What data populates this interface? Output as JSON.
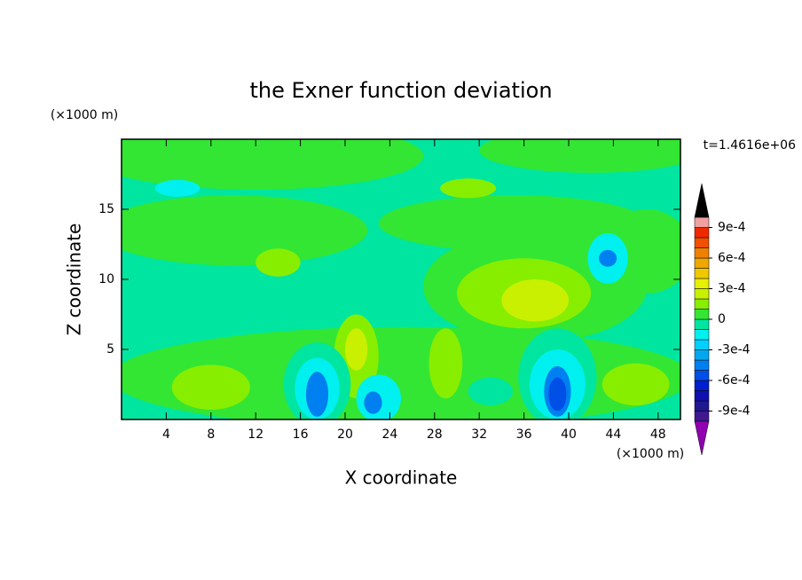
{
  "chart_data": {
    "type": "contour",
    "title": "the Exner function deviation",
    "xlabel": "X coordinate",
    "ylabel": "Z coordinate",
    "x_unit": "(×1000 m)",
    "y_unit": "(×1000 m)",
    "time_label": "t=1.4616e+06",
    "xlim": [
      0,
      50
    ],
    "ylim": [
      0,
      20
    ],
    "xticks": [
      4,
      8,
      12,
      16,
      20,
      24,
      28,
      32,
      36,
      40,
      44,
      48
    ],
    "yticks": [
      5,
      10,
      15
    ],
    "colorbar": {
      "levels": [
        -0.001,
        -0.0009,
        -0.0008,
        -0.0007,
        -0.0006,
        -0.0005,
        -0.0004,
        -0.0003,
        -0.0002,
        -0.0001,
        0,
        0.0001,
        0.0002,
        0.0003,
        0.0004,
        0.0005,
        0.0006,
        0.0007,
        0.0008,
        0.0009,
        0.001
      ],
      "colors": [
        "#9000b0",
        "#401890",
        "#201890",
        "#1010b0",
        "#0020d0",
        "#0050e8",
        "#0080f0",
        "#00a8f0",
        "#00d0ff",
        "#00f0f0",
        "#00e6a0",
        "#33e633",
        "#88ee00",
        "#c8f000",
        "#e6f000",
        "#f0c800",
        "#f0a800",
        "#f08000",
        "#f05000",
        "#f02800",
        "#f0a0a0"
      ],
      "ticks": [
        {
          "value": 0.0009,
          "label": "9e-4"
        },
        {
          "value": 0.0006,
          "label": "6e-4"
        },
        {
          "value": 0.0003,
          "label": "3e-4"
        },
        0,
        {
          "value": -0.0003,
          "label": "-3e-4"
        },
        {
          "value": -0.0006,
          "label": "-6e-4"
        },
        {
          "value": -0.0009,
          "label": "-9e-4"
        }
      ]
    },
    "background": -5e-05,
    "blobs": [
      {
        "x": 12,
        "z": 18.8,
        "rx": 15,
        "rz": 2.4,
        "value": 5e-05
      },
      {
        "x": 42,
        "z": 19.2,
        "rx": 10,
        "rz": 1.6,
        "value": 5e-05
      },
      {
        "x": 10,
        "z": 13.5,
        "rx": 12,
        "rz": 2.5,
        "value": 5e-05
      },
      {
        "x": 35,
        "z": 14,
        "rx": 12,
        "rz": 2,
        "value": 5e-05
      },
      {
        "x": 47,
        "z": 12,
        "rx": 4,
        "rz": 3,
        "value": 5e-05
      },
      {
        "x": 37,
        "z": 9.5,
        "rx": 10,
        "rz": 4,
        "value": 5e-05
      },
      {
        "x": 36,
        "z": 9,
        "rx": 6,
        "rz": 2.5,
        "value": 0.00015
      },
      {
        "x": 37,
        "z": 8.5,
        "rx": 3,
        "rz": 1.5,
        "value": 0.00025
      },
      {
        "x": 31,
        "z": 16.5,
        "rx": 2.5,
        "rz": 0.7,
        "value": 0.00015
      },
      {
        "x": 14,
        "z": 11.2,
        "rx": 2,
        "rz": 1,
        "value": 0.00015
      },
      {
        "x": 43.5,
        "z": 11.5,
        "rx": 1.8,
        "rz": 1.8,
        "value": -0.00015
      },
      {
        "x": 43.5,
        "z": 11.5,
        "rx": 0.8,
        "rz": 0.6,
        "value": -0.00045
      },
      {
        "x": 5,
        "z": 16.5,
        "rx": 2,
        "rz": 0.6,
        "value": -0.00015
      },
      {
        "x": 25,
        "z": 3,
        "rx": 26,
        "rz": 3.6,
        "value": 5e-05
      },
      {
        "x": 8,
        "z": 2.3,
        "rx": 3.5,
        "rz": 1.6,
        "value": 0.00015
      },
      {
        "x": 21,
        "z": 4.5,
        "rx": 2,
        "rz": 3,
        "value": 0.00015
      },
      {
        "x": 21,
        "z": 5,
        "rx": 1,
        "rz": 1.5,
        "value": 0.00025
      },
      {
        "x": 46,
        "z": 2.5,
        "rx": 3,
        "rz": 1.5,
        "value": 0.00015
      },
      {
        "x": 29,
        "z": 4,
        "rx": 1.5,
        "rz": 2.5,
        "value": 0.00015
      },
      {
        "x": 33,
        "z": 2,
        "rx": 2,
        "rz": 1,
        "value": -5e-05
      },
      {
        "x": 17.5,
        "z": 2.5,
        "rx": 3,
        "rz": 3,
        "value": -5e-05
      },
      {
        "x": 17.5,
        "z": 2.2,
        "rx": 2,
        "rz": 2.2,
        "value": -0.00015
      },
      {
        "x": 17.5,
        "z": 1.8,
        "rx": 1,
        "rz": 1.6,
        "value": -0.00045
      },
      {
        "x": 23,
        "z": 1.5,
        "rx": 2,
        "rz": 1.7,
        "value": -0.00015
      },
      {
        "x": 22.5,
        "z": 1.2,
        "rx": 0.8,
        "rz": 0.8,
        "value": -0.00045
      },
      {
        "x": 39,
        "z": 3,
        "rx": 3.5,
        "rz": 3.5,
        "value": -5e-05
      },
      {
        "x": 39,
        "z": 2.5,
        "rx": 2.5,
        "rz": 2.5,
        "value": -0.00015
      },
      {
        "x": 39,
        "z": 2,
        "rx": 1.2,
        "rz": 1.8,
        "value": -0.00045
      },
      {
        "x": 39,
        "z": 1.8,
        "rx": 0.8,
        "rz": 1.2,
        "value": -0.00055
      }
    ]
  }
}
